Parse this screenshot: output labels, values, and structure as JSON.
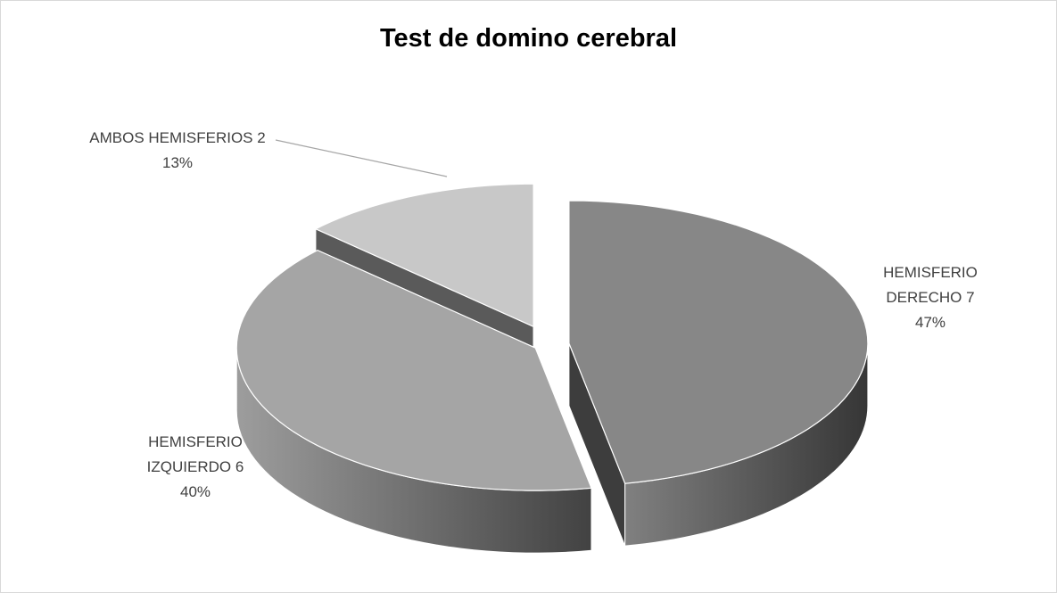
{
  "chart_data": {
    "type": "pie",
    "title": "Test de domino cerebral",
    "categories": [
      "HEMISFERIO DERECHO",
      "HEMISFERIO IZQUIERDO",
      "AMBOS HEMISFERIOS"
    ],
    "counts": [
      7,
      6,
      2
    ],
    "values": [
      47,
      40,
      13
    ],
    "value_labels": [
      "47%",
      "40%",
      "13%"
    ],
    "colors": [
      "#878787",
      "#a5a5a5",
      "#c8c8c8"
    ],
    "style": "3d-exploded"
  }
}
